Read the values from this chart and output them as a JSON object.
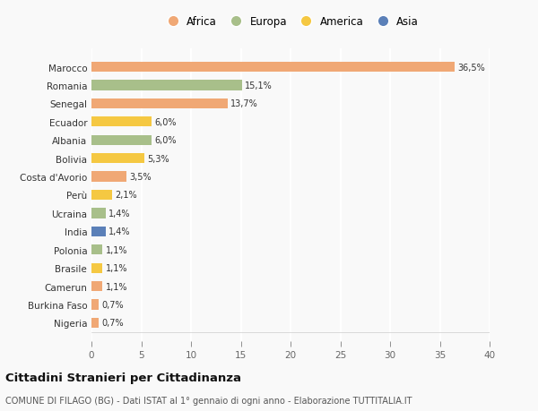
{
  "countries": [
    "Nigeria",
    "Burkina Faso",
    "Camerun",
    "Brasile",
    "Polonia",
    "India",
    "Ucraina",
    "Perù",
    "Costa d'Avorio",
    "Bolivia",
    "Albania",
    "Ecuador",
    "Senegal",
    "Romania",
    "Marocco"
  ],
  "values": [
    0.7,
    0.7,
    1.1,
    1.1,
    1.1,
    1.4,
    1.4,
    2.1,
    3.5,
    5.3,
    6.0,
    6.0,
    13.7,
    15.1,
    36.5
  ],
  "labels": [
    "0,7%",
    "0,7%",
    "1,1%",
    "1,1%",
    "1,1%",
    "1,4%",
    "1,4%",
    "2,1%",
    "3,5%",
    "5,3%",
    "6,0%",
    "6,0%",
    "13,7%",
    "15,1%",
    "36,5%"
  ],
  "colors": [
    "#f0a875",
    "#f0a875",
    "#f0a875",
    "#f5c842",
    "#a8bf8a",
    "#5b80b8",
    "#a8bf8a",
    "#f5c842",
    "#f0a875",
    "#f5c842",
    "#a8bf8a",
    "#f5c842",
    "#f0a875",
    "#a8bf8a",
    "#f0a875"
  ],
  "continent_colors": {
    "Africa": "#f0a875",
    "Europa": "#a8bf8a",
    "America": "#f5c842",
    "Asia": "#5b80b8"
  },
  "legend_order": [
    "Africa",
    "Europa",
    "America",
    "Asia"
  ],
  "title": "Cittadini Stranieri per Cittadinanza",
  "subtitle": "COMUNE DI FILAGO (BG) - Dati ISTAT al 1° gennaio di ogni anno - Elaborazione TUTTITALIA.IT",
  "xlim": [
    0,
    40
  ],
  "xticks": [
    0,
    5,
    10,
    15,
    20,
    25,
    30,
    35,
    40
  ],
  "bg_color": "#f9f9f9",
  "grid_color": "#ffffff",
  "bar_height": 0.55
}
